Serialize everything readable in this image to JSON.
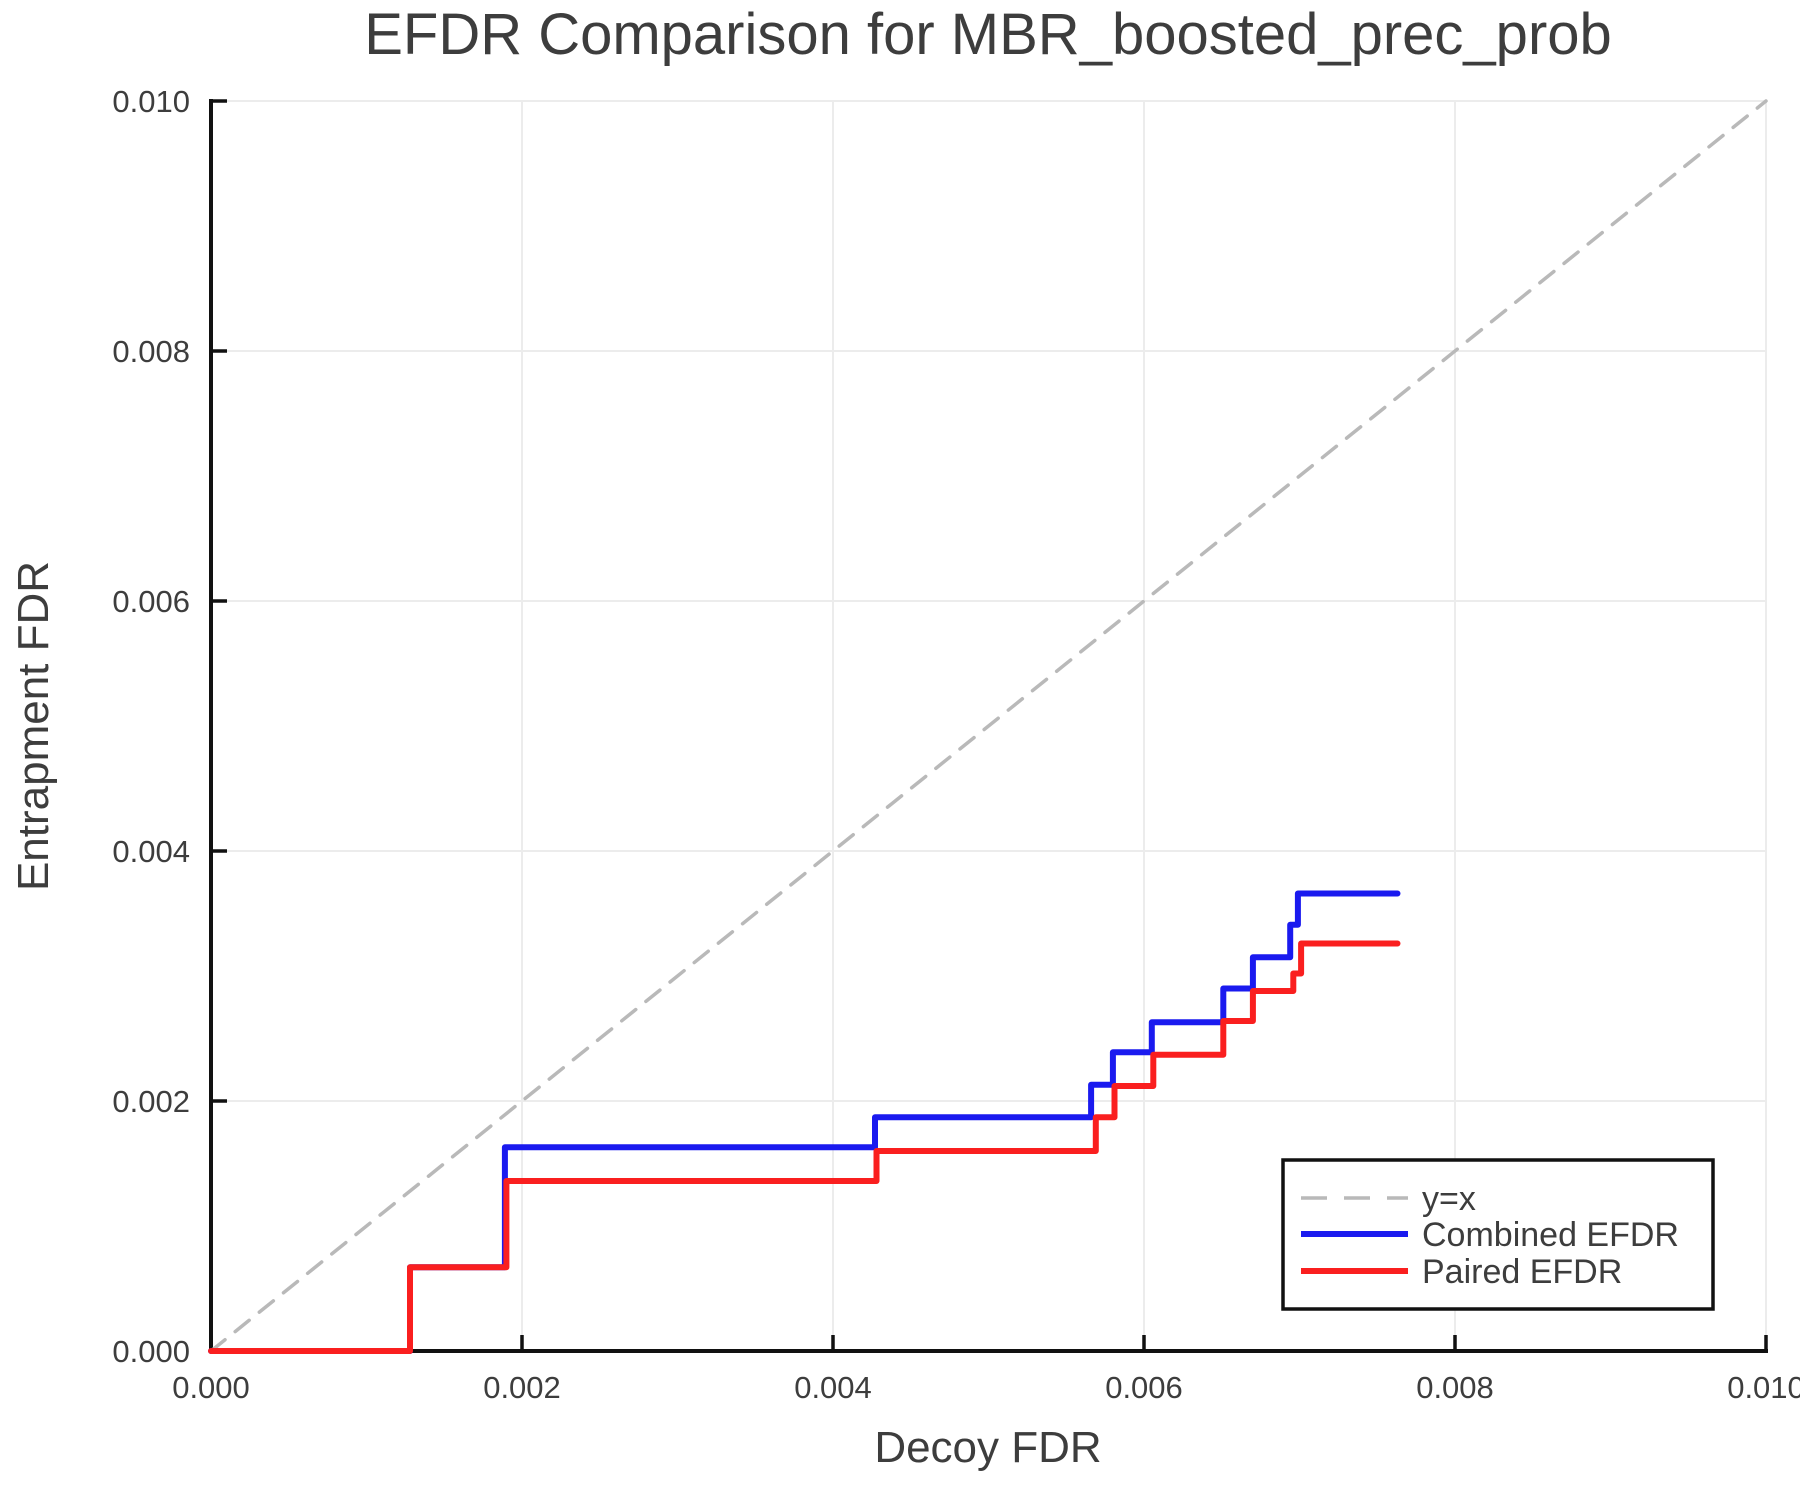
{
  "chart_data": {
    "type": "line",
    "title": "EFDR Comparison for MBR_boosted_prec_prob",
    "xlabel": "Decoy FDR",
    "ylabel": "Entrapment FDR",
    "xlim": [
      0.0,
      0.01
    ],
    "ylim": [
      0.0,
      0.01
    ],
    "grid": true,
    "legend_position": "lower right",
    "xticks": {
      "values": [
        0.0,
        0.002,
        0.004,
        0.006,
        0.008,
        0.01
      ],
      "labels": [
        "0.000",
        "0.002",
        "0.004",
        "0.006",
        "0.008",
        "0.010"
      ]
    },
    "yticks": {
      "values": [
        0.0,
        0.002,
        0.004,
        0.006,
        0.008,
        0.01
      ],
      "labels": [
        "0.000",
        "0.002",
        "0.004",
        "0.006",
        "0.008",
        "0.010"
      ]
    },
    "colors": {
      "grid": "#ececec",
      "text": "#3d3d3d",
      "spine": "#111111",
      "background": "#ffffff"
    },
    "series": [
      {
        "id": "y-equals-x",
        "name": "y=x",
        "color": "#b9b9b9",
        "style": "dashed",
        "points": [
          [
            0.0,
            0.0
          ],
          [
            0.01,
            0.01
          ]
        ]
      },
      {
        "id": "combined-efdr",
        "name": "Combined EFDR",
        "color": "#1a1aef",
        "style": "solid",
        "step": true,
        "points": [
          [
            0.0,
            0.0
          ],
          [
            0.00128,
            0.0
          ],
          [
            0.00128,
            0.00067
          ],
          [
            0.00189,
            0.00067
          ],
          [
            0.00189,
            0.00163
          ],
          [
            0.00427,
            0.00163
          ],
          [
            0.00427,
            0.00187
          ],
          [
            0.00566,
            0.00187
          ],
          [
            0.00566,
            0.00213
          ],
          [
            0.0058,
            0.00213
          ],
          [
            0.0058,
            0.00239
          ],
          [
            0.00605,
            0.00239
          ],
          [
            0.00605,
            0.00263
          ],
          [
            0.00651,
            0.00263
          ],
          [
            0.00651,
            0.0029
          ],
          [
            0.0067,
            0.0029
          ],
          [
            0.0067,
            0.00315
          ],
          [
            0.00694,
            0.00315
          ],
          [
            0.00694,
            0.00341
          ],
          [
            0.00699,
            0.00341
          ],
          [
            0.00699,
            0.00366
          ],
          [
            0.00763,
            0.00366
          ]
        ]
      },
      {
        "id": "paired-efdr",
        "name": "Paired EFDR",
        "color": "#fa1f1f",
        "style": "solid",
        "step": true,
        "points": [
          [
            0.0,
            0.0
          ],
          [
            0.00128,
            0.0
          ],
          [
            0.00128,
            0.00067
          ],
          [
            0.0019,
            0.00067
          ],
          [
            0.0019,
            0.00136
          ],
          [
            0.00428,
            0.00136
          ],
          [
            0.00428,
            0.0016
          ],
          [
            0.00569,
            0.0016
          ],
          [
            0.00569,
            0.00187
          ],
          [
            0.00581,
            0.00187
          ],
          [
            0.00581,
            0.00212
          ],
          [
            0.00606,
            0.00212
          ],
          [
            0.00606,
            0.00237
          ],
          [
            0.00651,
            0.00237
          ],
          [
            0.00651,
            0.00264
          ],
          [
            0.0067,
            0.00264
          ],
          [
            0.0067,
            0.00288
          ],
          [
            0.00696,
            0.00288
          ],
          [
            0.00696,
            0.00302
          ],
          [
            0.00701,
            0.00302
          ],
          [
            0.00701,
            0.00326
          ],
          [
            0.00763,
            0.00326
          ]
        ]
      }
    ]
  },
  "legend": {
    "items": [
      {
        "label": "y=x"
      },
      {
        "label": "Combined EFDR"
      },
      {
        "label": "Paired EFDR"
      }
    ]
  }
}
